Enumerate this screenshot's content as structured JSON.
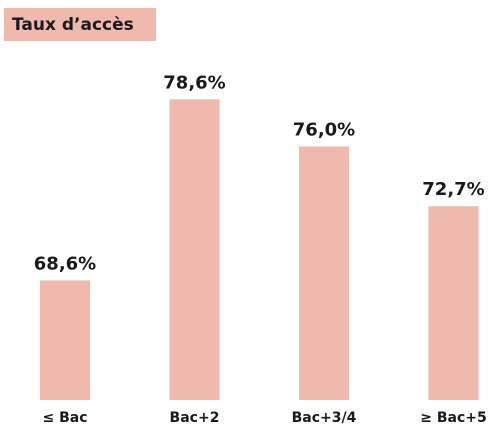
{
  "chart_data": {
    "type": "bar",
    "title": "Taux d’accès",
    "categories": [
      "≤ Bac",
      "Bac+2",
      "Bac+3/4",
      "≥ Bac+5"
    ],
    "values": [
      68.6,
      78.6,
      76.0,
      72.7
    ],
    "value_labels": [
      "68,6%",
      "78,6%",
      "76,0%",
      "72,7%"
    ],
    "color": "#efb9ae",
    "ylim": [
      62,
      80
    ]
  }
}
